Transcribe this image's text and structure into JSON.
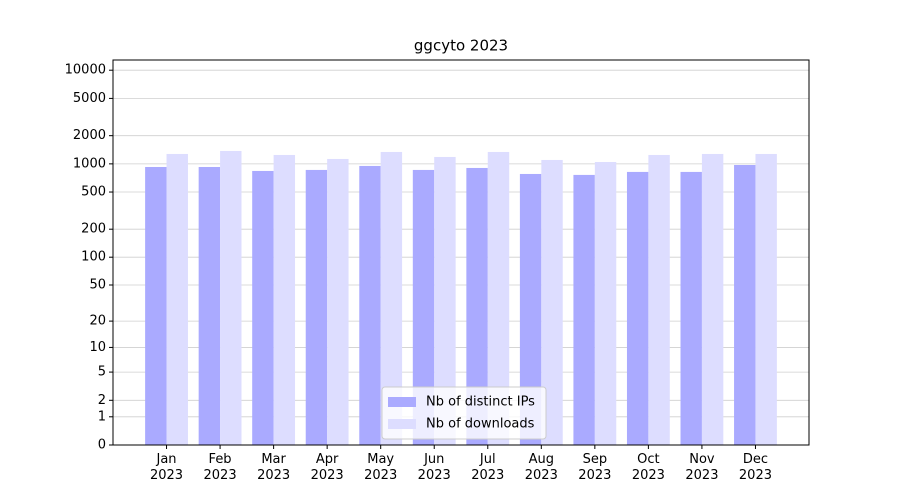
{
  "chart_data": {
    "type": "bar",
    "title": "ggcyto 2023",
    "categories": [
      "Jan\n2023",
      "Feb\n2023",
      "Mar\n2023",
      "Apr\n2023",
      "May\n2023",
      "Jun\n2023",
      "Jul\n2023",
      "Aug\n2023",
      "Sep\n2023",
      "Oct\n2023",
      "Nov\n2023",
      "Dec\n2023"
    ],
    "series": [
      {
        "name": "Nb of distinct IPs",
        "color": "#aaaaff",
        "values": [
          926,
          926,
          840,
          861,
          950,
          861,
          904,
          780,
          762,
          820,
          820,
          973
        ]
      },
      {
        "name": "Nb of downloads",
        "color": "#ddddff",
        "values": [
          1276,
          1373,
          1245,
          1128,
          1340,
          1185,
          1340,
          1101,
          1047,
          1245,
          1276,
          1276
        ]
      }
    ],
    "yscale": "log1p",
    "ylim": [
      0,
      12850
    ],
    "yticks": [
      0,
      1,
      2,
      5,
      10,
      20,
      50,
      100,
      200,
      500,
      1000,
      2000,
      5000,
      10000
    ],
    "grid": true,
    "legend": "lower center"
  }
}
